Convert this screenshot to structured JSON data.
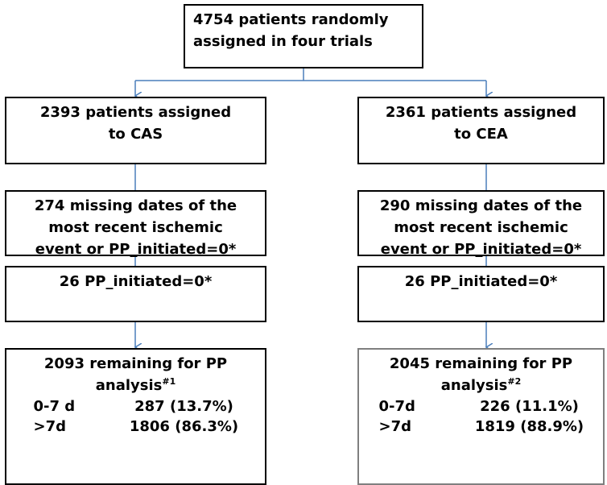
{
  "top": {
    "lines": [
      "4754 patients randomly",
      "assigned in four trials"
    ]
  },
  "left": {
    "assigned": {
      "lines": [
        "2393 patients assigned",
        "to CAS"
      ]
    },
    "missing": {
      "lines": [
        "274 missing dates of the",
        "most recent ischemic",
        "event or PP_initiated=0*"
      ]
    },
    "excluded": {
      "lines": [
        "26 PP_initiated=0*"
      ]
    },
    "remaining": {
      "lines": [
        "2093 remaining for PP",
        "analysis"
      ],
      "footnote": "#1",
      "rows": [
        [
          "0-7 d",
          "287 (13.7%)"
        ],
        [
          ">7d",
          "1806 (86.3%)"
        ]
      ]
    }
  },
  "right": {
    "assigned": {
      "lines": [
        "2361 patients assigned",
        "to CEA"
      ]
    },
    "missing": {
      "lines": [
        "290 missing dates of the",
        "most recent ischemic",
        "event or PP_initiated=0*"
      ]
    },
    "excluded": {
      "lines": [
        "26 PP_initiated=0*"
      ]
    },
    "remaining": {
      "lines": [
        "2045 remaining for PP",
        "analysis"
      ],
      "footnote": "#2",
      "rows": [
        [
          "0-7d",
          "226 (11.1%)"
        ],
        [
          ">7d",
          "1819 (88.9%)"
        ]
      ]
    }
  }
}
